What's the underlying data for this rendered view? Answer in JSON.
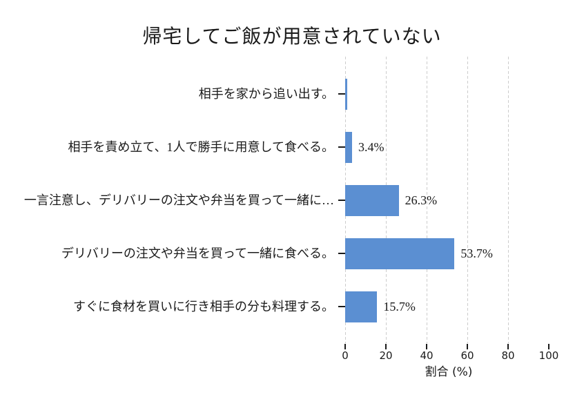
{
  "chart_data": {
    "type": "bar",
    "orientation": "horizontal",
    "title": "帰宅してご飯が用意されていない",
    "categories": [
      "相手を家から追い出す。",
      "相手を責め立て、1人で勝手に用意して食べる。",
      "一言注意し、デリバリーの注文や弁当を買って一緒に…",
      "デリバリーの注文や弁当を買って一緒に食べる。",
      "すぐに食材を買いに行き相手の分も料理する。"
    ],
    "values": [
      0.9,
      3.4,
      26.3,
      53.7,
      15.7
    ],
    "value_labels": [
      "",
      "3.4%",
      "26.3%",
      "53.7%",
      "15.7%"
    ],
    "xlabel": "割合 (%)",
    "xlim": [
      0,
      100
    ],
    "xticks": [
      0,
      20,
      40,
      60,
      80,
      100
    ],
    "gridline_ticks": [
      0,
      20,
      40,
      60,
      80
    ],
    "grid": "vertical-dashed",
    "legend": "none",
    "bar_color": "#5b8fd2",
    "gridline_color": "#cccccc",
    "text_color": "#1a1a1a"
  }
}
